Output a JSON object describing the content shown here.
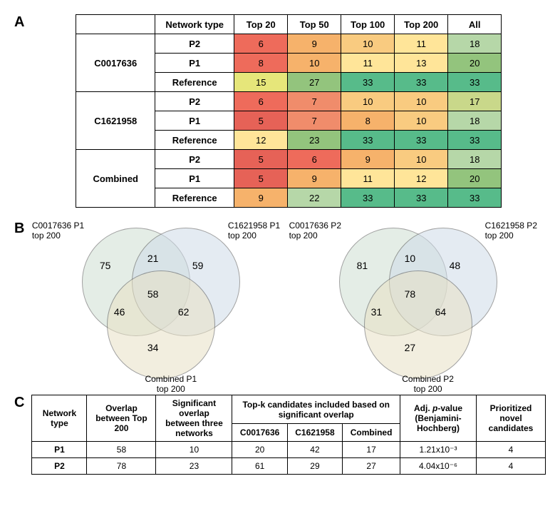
{
  "panelA": {
    "label": "A",
    "headers": [
      "Network type",
      "Top 20",
      "Top 50",
      "Top 100",
      "Top 200",
      "All"
    ],
    "groups": [
      {
        "name": "C0017636",
        "rows": [
          {
            "net": "P2",
            "cells": [
              {
                "v": 6,
                "c": "#ee6b5b"
              },
              {
                "v": 9,
                "c": "#f6b26b"
              },
              {
                "v": 10,
                "c": "#f9cb80"
              },
              {
                "v": 11,
                "c": "#ffe599"
              },
              {
                "v": 18,
                "c": "#b6d7a8"
              }
            ]
          },
          {
            "net": "P1",
            "cells": [
              {
                "v": 8,
                "c": "#ee6b5b"
              },
              {
                "v": 10,
                "c": "#f6b26b"
              },
              {
                "v": 11,
                "c": "#ffe599"
              },
              {
                "v": 13,
                "c": "#ffe599"
              },
              {
                "v": 20,
                "c": "#93c47d"
              }
            ]
          },
          {
            "net": "Reference",
            "cells": [
              {
                "v": 15,
                "c": "#e6e67a"
              },
              {
                "v": 27,
                "c": "#93c47d"
              },
              {
                "v": 33,
                "c": "#57bb8a"
              },
              {
                "v": 33,
                "c": "#57bb8a"
              },
              {
                "v": 33,
                "c": "#57bb8a"
              }
            ]
          }
        ]
      },
      {
        "name": "C1621958",
        "rows": [
          {
            "net": "P2",
            "cells": [
              {
                "v": 6,
                "c": "#ee6b5b"
              },
              {
                "v": 7,
                "c": "#f08c6b"
              },
              {
                "v": 10,
                "c": "#f9cb80"
              },
              {
                "v": 10,
                "c": "#f9cb80"
              },
              {
                "v": 17,
                "c": "#c9d88a"
              }
            ]
          },
          {
            "net": "P1",
            "cells": [
              {
                "v": 5,
                "c": "#e66257"
              },
              {
                "v": 7,
                "c": "#f08c6b"
              },
              {
                "v": 8,
                "c": "#f6b26b"
              },
              {
                "v": 10,
                "c": "#f9cb80"
              },
              {
                "v": 18,
                "c": "#b6d7a8"
              }
            ]
          },
          {
            "net": "Reference",
            "cells": [
              {
                "v": 12,
                "c": "#ffe599"
              },
              {
                "v": 23,
                "c": "#93c47d"
              },
              {
                "v": 33,
                "c": "#57bb8a"
              },
              {
                "v": 33,
                "c": "#57bb8a"
              },
              {
                "v": 33,
                "c": "#57bb8a"
              }
            ]
          }
        ]
      },
      {
        "name": "Combined",
        "rows": [
          {
            "net": "P2",
            "cells": [
              {
                "v": 5,
                "c": "#e66257"
              },
              {
                "v": 6,
                "c": "#ee6b5b"
              },
              {
                "v": 9,
                "c": "#f6b26b"
              },
              {
                "v": 10,
                "c": "#f9cb80"
              },
              {
                "v": 18,
                "c": "#b6d7a8"
              }
            ]
          },
          {
            "net": "P1",
            "cells": [
              {
                "v": 5,
                "c": "#e66257"
              },
              {
                "v": 9,
                "c": "#f6b26b"
              },
              {
                "v": 11,
                "c": "#ffe599"
              },
              {
                "v": 12,
                "c": "#ffe599"
              },
              {
                "v": 20,
                "c": "#93c47d"
              }
            ]
          },
          {
            "net": "Reference",
            "cells": [
              {
                "v": 9,
                "c": "#f6b26b"
              },
              {
                "v": 22,
                "c": "#b6d7a8"
              },
              {
                "v": 33,
                "c": "#57bb8a"
              },
              {
                "v": 33,
                "c": "#57bb8a"
              },
              {
                "v": 33,
                "c": "#57bb8a"
              }
            ]
          }
        ]
      }
    ]
  },
  "panelB": {
    "label": "B",
    "left": {
      "labels": {
        "c1": "C0017636 P1\ntop 200",
        "c2": "C1621958 P1\ntop 200",
        "c3": "Combined P1\ntop 200"
      },
      "values": {
        "only1": 75,
        "only2": 59,
        "only3": 34,
        "i12": 21,
        "i13": 46,
        "i23": 62,
        "i123": 58
      }
    },
    "right": {
      "labels": {
        "c1": "C0017636 P2\ntop 200",
        "c2": "C1621958 P2\ntop 200",
        "c3": "Combined P2\ntop 200"
      },
      "values": {
        "only1": 81,
        "only2": 48,
        "only3": 27,
        "i12": 10,
        "i13": 31,
        "i23": 64,
        "i123": 78
      }
    }
  },
  "panelC": {
    "label": "C",
    "header_row1": [
      "Network type",
      "Overlap between Top 200",
      "Significant overlap between three networks",
      "Top-k candidates included based on significant overlap",
      "Adj. p-value (Benjamini-Hochberg)",
      "Prioritized novel candidates"
    ],
    "header_row2": [
      "C0017636",
      "C1621958",
      "Combined"
    ],
    "rows": [
      {
        "net": "P1",
        "overlap": 58,
        "sig": 10,
        "k1": 20,
        "k2": 42,
        "k3": 17,
        "p": "1.21x10⁻³",
        "cand": 4
      },
      {
        "net": "P2",
        "overlap": 78,
        "sig": 23,
        "k1": 61,
        "k2": 29,
        "k3": 27,
        "p": "4.04x10⁻⁶",
        "cand": 4
      }
    ]
  }
}
